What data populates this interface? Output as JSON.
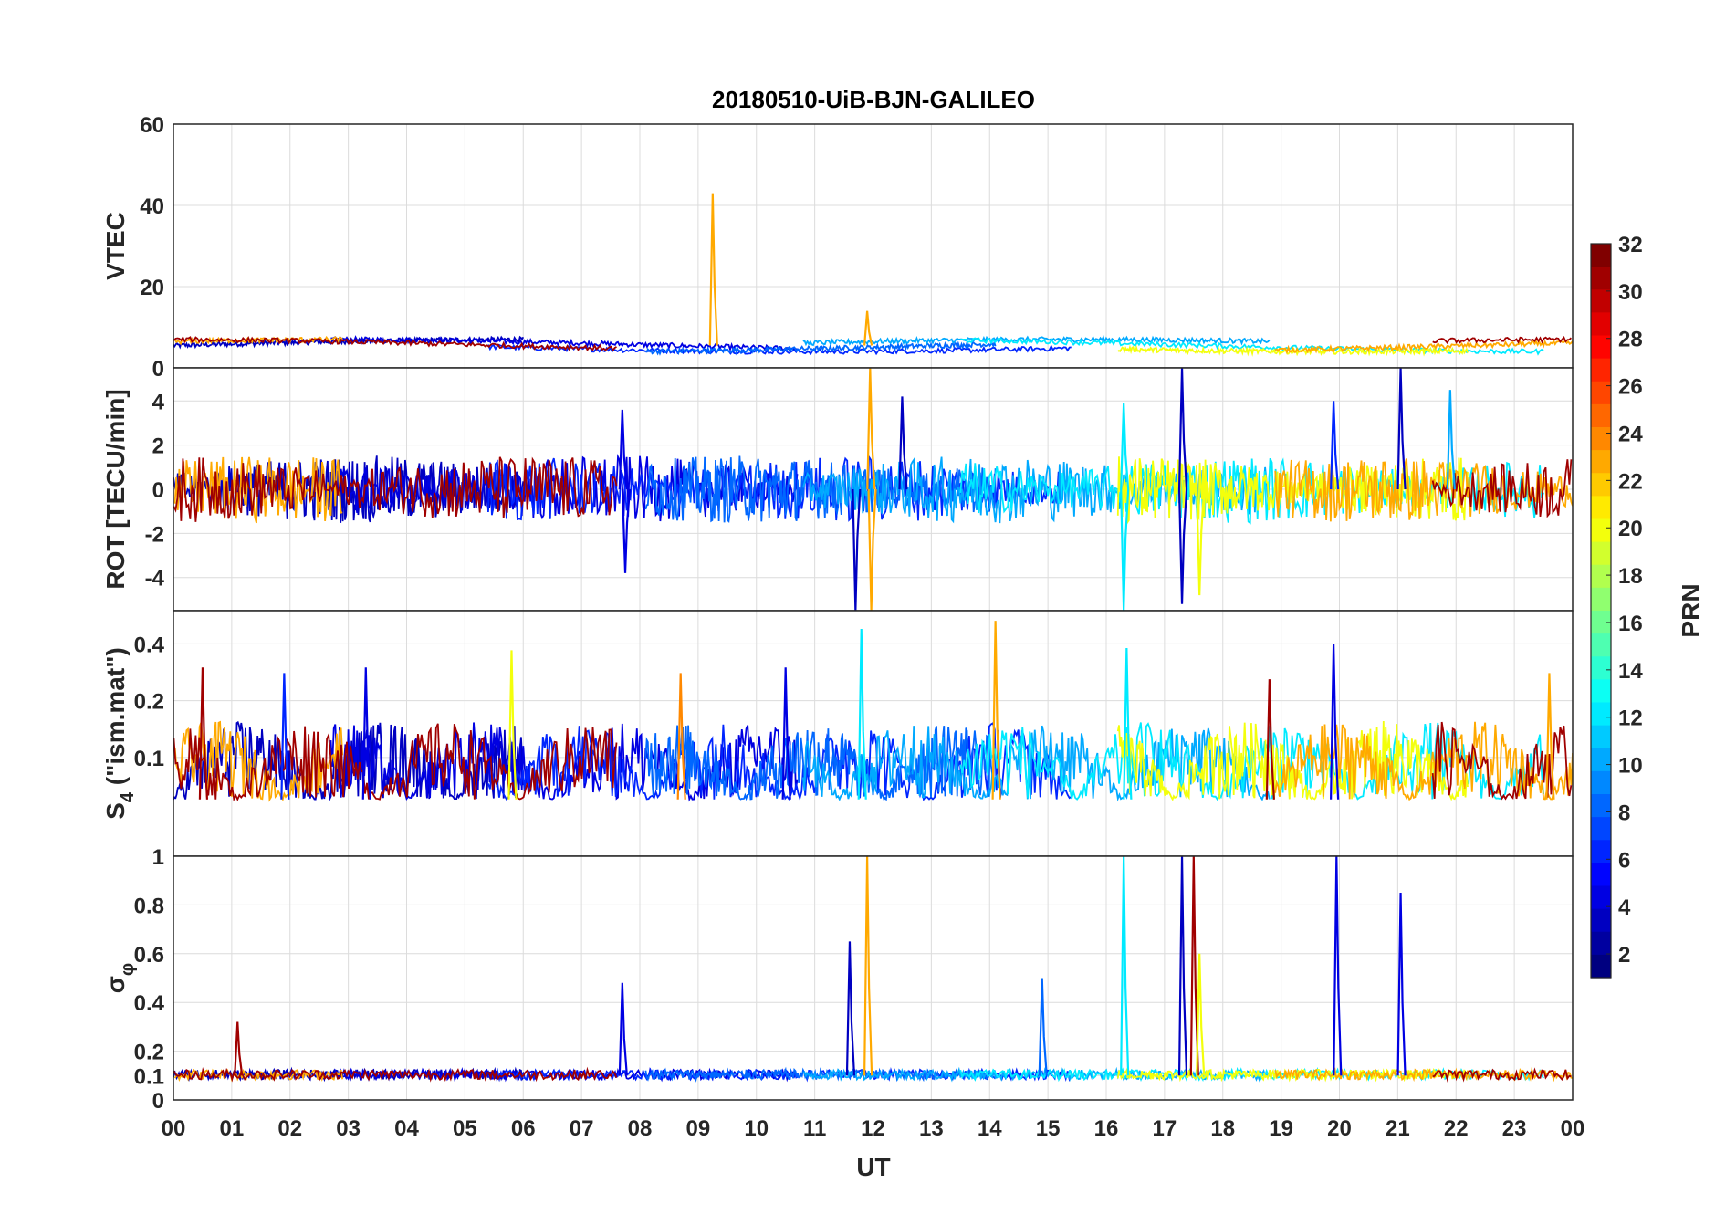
{
  "chart_data": {
    "type": "line",
    "title": "20180510-UiB-BJN-GALILEO",
    "xlabel": "UT",
    "x_range_hours": [
      0,
      24
    ],
    "x_tick_labels": [
      "00",
      "01",
      "02",
      "03",
      "04",
      "05",
      "06",
      "07",
      "08",
      "09",
      "10",
      "11",
      "12",
      "13",
      "14",
      "15",
      "16",
      "17",
      "18",
      "19",
      "20",
      "21",
      "22",
      "23",
      "00"
    ],
    "grid": true,
    "colorbar": {
      "label": "PRN",
      "range": [
        1,
        32
      ],
      "tick_labels": [
        "32",
        "30",
        "28",
        "26",
        "24",
        "22",
        "20",
        "18",
        "16",
        "14",
        "12",
        "10",
        "8",
        "6",
        "4",
        "2"
      ],
      "colormap": "jet"
    },
    "panels": [
      {
        "id": "vtec",
        "ylabel": "VTEC",
        "ylim": [
          0,
          60
        ],
        "yticks": [
          "0",
          "20",
          "40",
          "60"
        ],
        "baseline": 5.5,
        "spikes": [
          {
            "hour": 9.25,
            "value": 43,
            "prn": 23
          },
          {
            "hour": 11.9,
            "value": 14,
            "prn": 23
          }
        ]
      },
      {
        "id": "rot",
        "ylabel": "ROT [TECU/min]",
        "ylim": [
          -5.5,
          5.5
        ],
        "yticks": [
          "-4",
          "-2",
          "0",
          "2",
          "4"
        ],
        "baseline": 0,
        "spikes": [
          {
            "hour": 7.7,
            "value": 3.6,
            "prn": 4
          },
          {
            "hour": 7.75,
            "value": -3.8,
            "prn": 4
          },
          {
            "hour": 11.95,
            "value": 5.5,
            "prn": 23
          },
          {
            "hour": 11.97,
            "value": -5.5,
            "prn": 23
          },
          {
            "hour": 11.7,
            "value": -5.5,
            "prn": 3
          },
          {
            "hour": 16.3,
            "value": -5.5,
            "prn": 12
          },
          {
            "hour": 16.3,
            "value": 3.9,
            "prn": 12
          },
          {
            "hour": 17.3,
            "value": 5.5,
            "prn": 3
          },
          {
            "hour": 17.3,
            "value": -5.2,
            "prn": 3
          },
          {
            "hour": 17.6,
            "value": -4.8,
            "prn": 20
          },
          {
            "hour": 21.05,
            "value": 5.5,
            "prn": 3
          },
          {
            "hour": 21.9,
            "value": 4.5,
            "prn": 10
          },
          {
            "hour": 19.9,
            "value": 4.0,
            "prn": 6
          },
          {
            "hour": 12.5,
            "value": 4.2,
            "prn": 3
          }
        ]
      },
      {
        "id": "s4",
        "ylabel": "S4 (\"ism.mat\")",
        "ylabel_main": "S",
        "ylabel_sub": "4",
        "ylabel_rest": " (\"ism.mat\")",
        "ylim": [
          0.03,
          0.6
        ],
        "yscale": "log",
        "yticks": [
          "0.1",
          "0.2",
          "0.4"
        ],
        "baseline": 0.06,
        "spikes": [
          {
            "hour": 0.5,
            "value": 0.3,
            "prn": 31
          },
          {
            "hour": 1.9,
            "value": 0.28,
            "prn": 6
          },
          {
            "hour": 3.3,
            "value": 0.3,
            "prn": 4
          },
          {
            "hour": 5.8,
            "value": 0.37,
            "prn": 20
          },
          {
            "hour": 8.7,
            "value": 0.28,
            "prn": 24
          },
          {
            "hour": 10.5,
            "value": 0.3,
            "prn": 4
          },
          {
            "hour": 11.8,
            "value": 0.48,
            "prn": 12
          },
          {
            "hour": 14.1,
            "value": 0.53,
            "prn": 23
          },
          {
            "hour": 16.35,
            "value": 0.38,
            "prn": 12
          },
          {
            "hour": 18.8,
            "value": 0.26,
            "prn": 31
          },
          {
            "hour": 19.9,
            "value": 0.4,
            "prn": 4
          },
          {
            "hour": 23.6,
            "value": 0.28,
            "prn": 23
          }
        ]
      },
      {
        "id": "sigma_phi",
        "ylabel": "σφ",
        "ylabel_main": "σ",
        "ylabel_sub": "φ",
        "ylim": [
          0,
          1
        ],
        "yticks": [
          "0",
          "0.1",
          "0.2",
          "0.4",
          "0.6",
          "0.8",
          "1"
        ],
        "baseline": 0.1,
        "spikes": [
          {
            "hour": 1.1,
            "value": 0.32,
            "prn": 31
          },
          {
            "hour": 7.7,
            "value": 0.48,
            "prn": 4
          },
          {
            "hour": 11.9,
            "value": 1.0,
            "prn": 23
          },
          {
            "hour": 11.6,
            "value": 0.65,
            "prn": 3
          },
          {
            "hour": 16.3,
            "value": 1.0,
            "prn": 12
          },
          {
            "hour": 17.3,
            "value": 1.0,
            "prn": 3
          },
          {
            "hour": 17.5,
            "value": 1.0,
            "prn": 31
          },
          {
            "hour": 17.6,
            "value": 0.6,
            "prn": 20
          },
          {
            "hour": 19.95,
            "value": 1.0,
            "prn": 4
          },
          {
            "hour": 21.05,
            "value": 0.85,
            "prn": 4
          },
          {
            "hour": 14.9,
            "value": 0.5,
            "prn": 8
          }
        ]
      }
    ]
  }
}
